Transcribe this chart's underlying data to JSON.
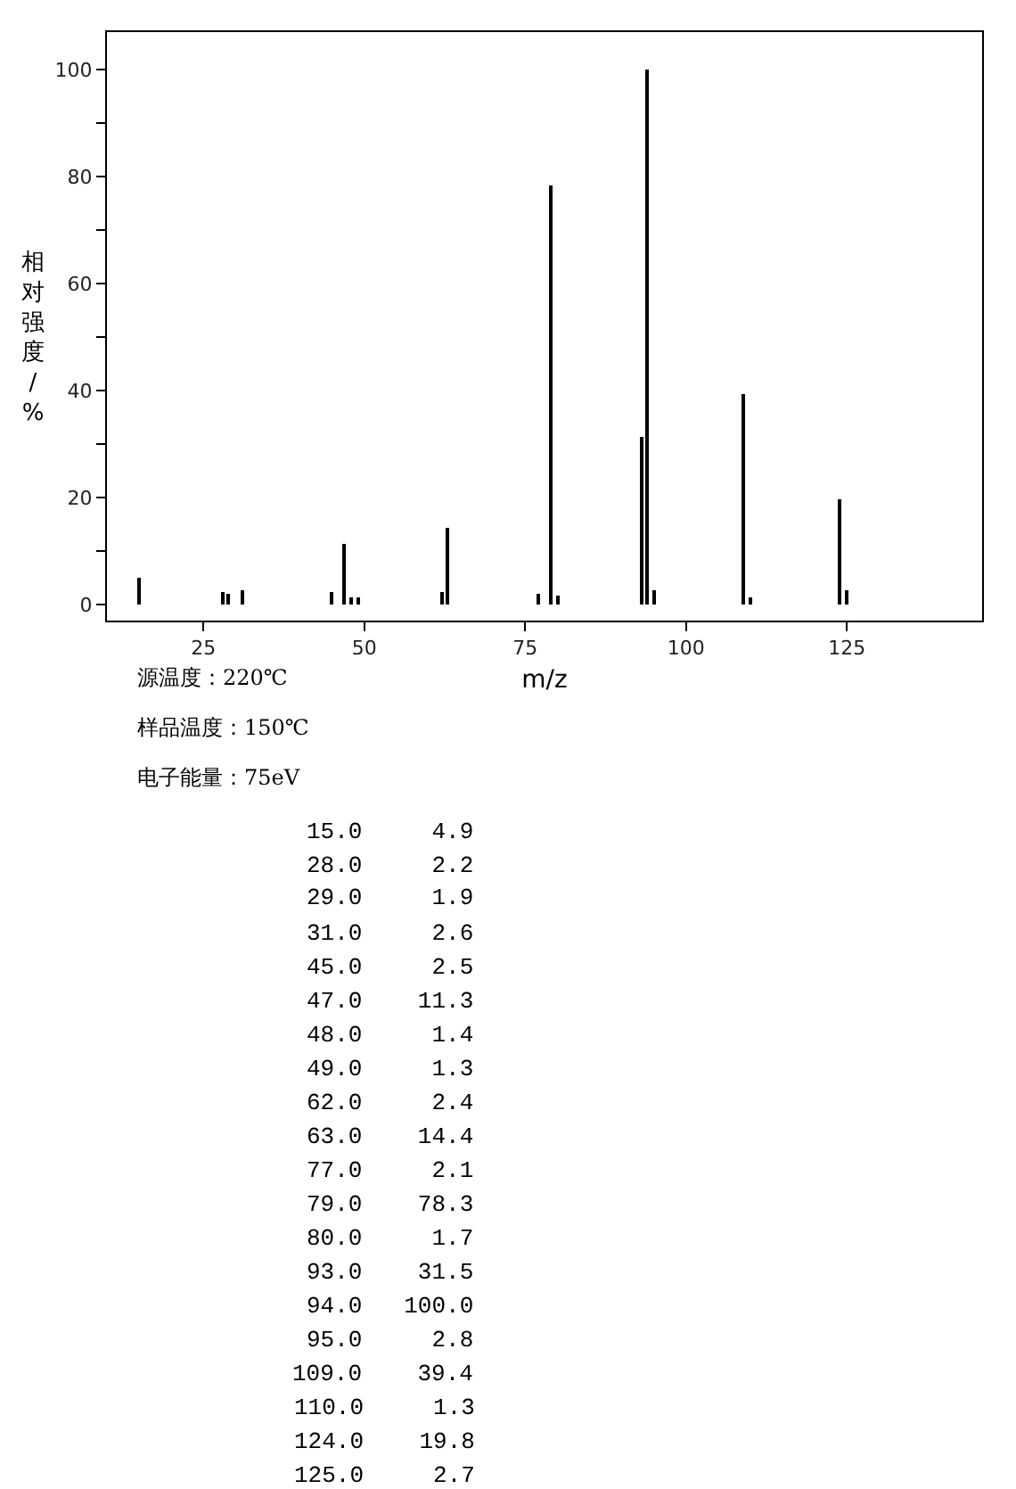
{
  "chart_data": {
    "type": "bar",
    "xlabel": "m/z",
    "ylabel": "相对强度/%",
    "x": [
      15.0,
      28.0,
      29.0,
      31.0,
      45.0,
      47.0,
      48.0,
      49.0,
      62.0,
      63.0,
      77.0,
      79.0,
      80.0,
      93.0,
      94.0,
      95.0,
      109.0,
      110.0,
      124.0,
      125.0
    ],
    "values": [
      4.9,
      2.2,
      1.9,
      2.6,
      2.5,
      11.3,
      1.4,
      1.3,
      2.4,
      14.4,
      2.1,
      78.3,
      1.7,
      31.5,
      100.0,
      2.8,
      39.4,
      1.3,
      19.8,
      2.7
    ],
    "color": "#000000",
    "xlim": [
      10,
      146
    ],
    "xticks": [
      25,
      50,
      75,
      100,
      125
    ],
    "ylim": [
      -3,
      107
    ],
    "yticks": [
      0,
      {
        "value": 10,
        "label": null
      },
      20,
      {
        "value": 30,
        "label": null
      },
      40,
      {
        "value": 50,
        "label": null
      },
      60,
      {
        "value": 70,
        "label": null
      },
      80,
      {
        "value": 90,
        "label": null
      },
      100
    ],
    "annotations": [
      "源温度：220℃",
      "样品温度：150℃",
      "电子能量：75eV",
      "15.0     4.9",
      "28.0     2.2",
      "29.0     1.9",
      "31.0     2.6",
      "45.0     2.5",
      "47.0    11.3",
      "48.0     1.4",
      "49.0     1.3",
      "62.0     2.4",
      "63.0    14.4",
      "77.0     2.1",
      "79.0    78.3",
      "80.0     1.7",
      "93.0    31.5",
      "94.0   100.0",
      "95.0     2.8",
      "109.0    39.4",
      "110.0     1.3",
      "124.0    19.8",
      "125.0     2.7"
    ]
  }
}
